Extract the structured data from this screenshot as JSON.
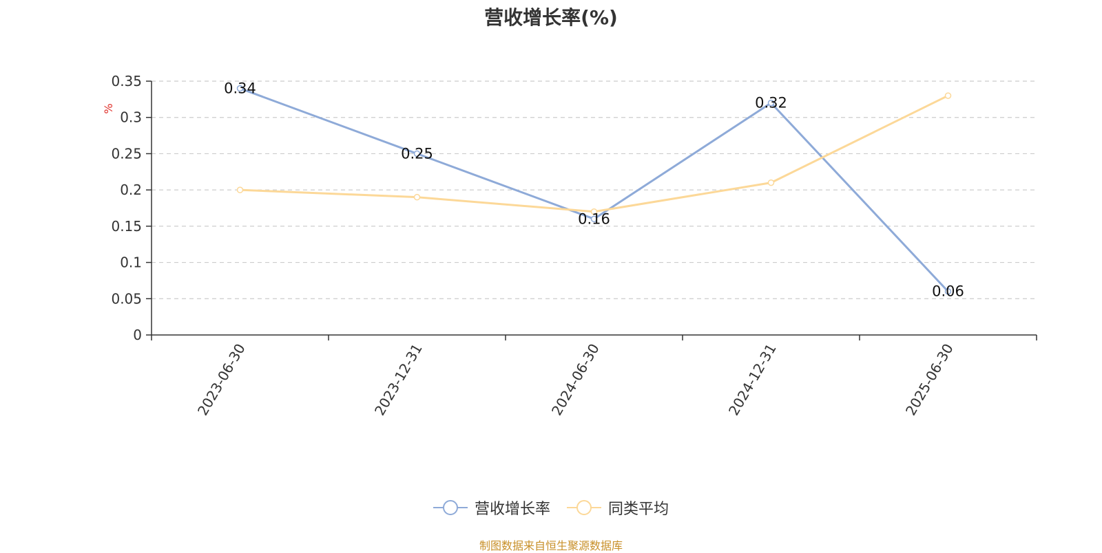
{
  "chart_data": {
    "type": "line",
    "title": "营收增长率(%)",
    "ylabel": "%",
    "xlabel": "",
    "categories": [
      "2023-06-30",
      "2023-12-31",
      "2024-06-30",
      "2024-12-31",
      "2025-06-30"
    ],
    "ylim": [
      0,
      0.35
    ],
    "yticks": [
      0,
      0.05,
      0.1,
      0.15,
      0.2,
      0.25,
      0.3,
      0.35
    ],
    "grid": true,
    "legend_position": "bottom",
    "series": [
      {
        "name": "营收增长率",
        "color": "#8eaad8",
        "values": [
          0.34,
          0.25,
          0.16,
          0.32,
          0.06
        ],
        "show_labels": true
      },
      {
        "name": "同类平均",
        "color": "#fcd898",
        "values": [
          0.2,
          0.19,
          0.17,
          0.21,
          0.33
        ],
        "show_labels": false
      }
    ]
  },
  "source_text": "制图数据来自恒生聚源数据库"
}
